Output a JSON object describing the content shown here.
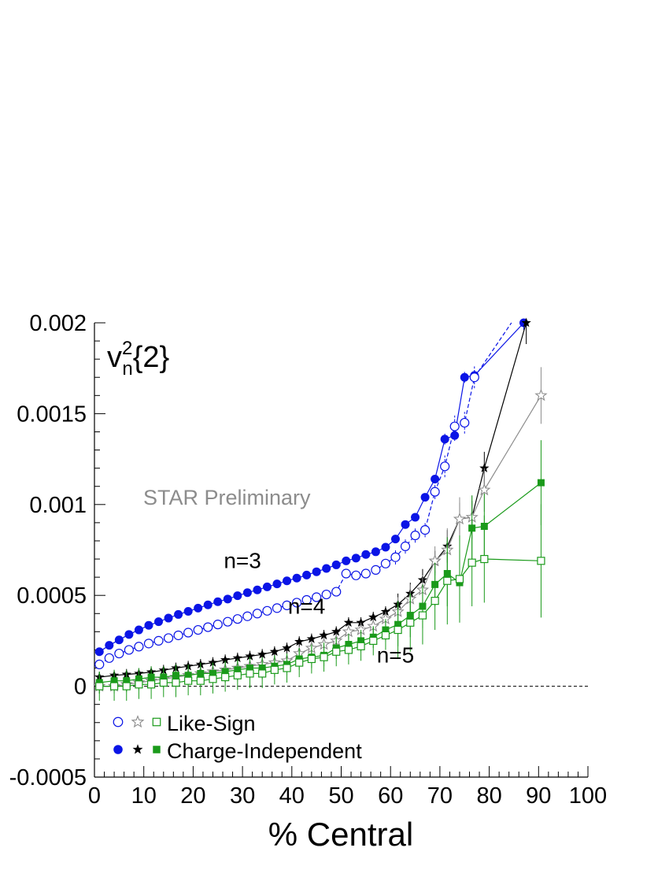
{
  "chart_data": {
    "type": "scatter",
    "title": "v_n^2{2}",
    "title_parts": {
      "base": "v",
      "sup": "2",
      "sub": "n",
      "rest": "{2}"
    },
    "annotation": "STAR Preliminary",
    "xlabel": "% Central",
    "ylabel": "",
    "xlim": [
      0,
      100
    ],
    "ylim": [
      -0.0005,
      0.002
    ],
    "x_ticks": [
      "0",
      "10",
      "20",
      "30",
      "40",
      "50",
      "60",
      "70",
      "80",
      "90",
      "100"
    ],
    "y_ticks": [
      "-0.0005",
      "0",
      "0.0005",
      "0.001",
      "0.0015",
      "0.002"
    ],
    "grid": false,
    "zero_line": "dashed",
    "colors": {
      "n3": "#0a14e6",
      "n4": "#000000",
      "n4_like": "#8c8c8c",
      "n5": "#1a9a1a"
    },
    "harmonic_labels": [
      {
        "text": "n=3",
        "x": 30,
        "y": 0.00065
      },
      {
        "text": "n=4",
        "x": 43,
        "y": 0.0004
      },
      {
        "text": "n=5",
        "x": 61,
        "y": 0.00013
      }
    ],
    "legend": {
      "placement": "bottom-left",
      "rows": [
        {
          "label": "Like-Sign",
          "markers": [
            "open-circle",
            "open-star",
            "open-square"
          ]
        },
        {
          "label": "Charge-Independent",
          "markers": [
            "filled-circle",
            "filled-star",
            "filled-square"
          ]
        }
      ]
    },
    "series": [
      {
        "harmonic": 3,
        "type": "charge-independent",
        "marker": "filled-circle",
        "color": "#0a14e6",
        "line": "solid",
        "err": 1e-05,
        "x": [
          1,
          3,
          5,
          7,
          9,
          11,
          13,
          15,
          17,
          19,
          21,
          23,
          25,
          27,
          29,
          31,
          33,
          35,
          37,
          39,
          41,
          43,
          45,
          47,
          49,
          51,
          53,
          55,
          57,
          59,
          61,
          63,
          65,
          67,
          69,
          71,
          73,
          75,
          77,
          87
        ],
        "y": [
          0.00019,
          0.000225,
          0.000255,
          0.000285,
          0.00031,
          0.000335,
          0.000355,
          0.000375,
          0.000395,
          0.000412,
          0.00043,
          0.000448,
          0.000465,
          0.00048,
          0.000498,
          0.000515,
          0.00053,
          0.000547,
          0.000563,
          0.00058,
          0.000595,
          0.000612,
          0.00063,
          0.000648,
          0.000668,
          0.00069,
          0.000705,
          0.000725,
          0.00074,
          0.000765,
          0.00081,
          0.00089,
          0.00093,
          0.00104,
          0.00114,
          0.00136,
          0.00138,
          0.0017,
          0.00171,
          0.002
        ]
      },
      {
        "harmonic": 3,
        "type": "like-sign",
        "marker": "open-circle",
        "color": "#0a14e6",
        "line": "dashed",
        "err": 2e-05,
        "x": [
          1,
          3,
          5,
          7,
          9,
          11,
          13,
          15,
          17,
          19,
          21,
          23,
          25,
          27,
          29,
          31,
          33,
          35,
          37,
          39,
          41,
          43,
          45,
          47,
          49,
          51,
          53,
          55,
          57,
          59,
          61,
          63,
          65,
          67,
          69,
          71,
          73,
          75,
          77,
          85
        ],
        "y": [
          0.00012,
          0.000155,
          0.00018,
          0.0002,
          0.000218,
          0.000235,
          0.00025,
          0.000265,
          0.00028,
          0.000295,
          0.00031,
          0.000325,
          0.00034,
          0.000355,
          0.00037,
          0.000385,
          0.0004,
          0.000415,
          0.00043,
          0.000445,
          0.00046,
          0.000475,
          0.00049,
          0.000505,
          0.00052,
          0.00062,
          0.00061,
          0.00062,
          0.00064,
          0.000675,
          0.00071,
          0.00077,
          0.00083,
          0.00086,
          0.00107,
          0.00121,
          0.00143,
          0.00145,
          0.0017,
          0.00202
        ]
      },
      {
        "harmonic": 4,
        "type": "charge-independent",
        "marker": "filled-star",
        "color": "#000000",
        "line": "solid",
        "err": 3e-05,
        "x": [
          1,
          4,
          6.5,
          9,
          11.5,
          14,
          16.5,
          19,
          21.5,
          24,
          26.5,
          29,
          31.5,
          34,
          36.5,
          39,
          41.5,
          44,
          46.5,
          49,
          51.5,
          54,
          56.5,
          59,
          61.5,
          64,
          66.5,
          69,
          71.5,
          74,
          76.5,
          79,
          87.5
        ],
        "y": [
          5e-05,
          6e-05,
          6.5e-05,
          7e-05,
          7.8e-05,
          8.8e-05,
          0.0001,
          0.00011,
          0.00012,
          0.00013,
          0.000145,
          0.000155,
          0.000165,
          0.000175,
          0.00019,
          0.00021,
          0.000245,
          0.00026,
          0.00028,
          0.0003,
          0.00035,
          0.00035,
          0.00038,
          0.00041,
          0.00045,
          0.00051,
          0.000585,
          0.000685,
          0.00077,
          0.00092,
          0.00093,
          0.0012,
          0.002
        ]
      },
      {
        "harmonic": 4,
        "type": "like-sign",
        "marker": "open-star",
        "color": "#8c8c8c",
        "line": "solid",
        "err": 4e-05,
        "x": [
          1,
          4,
          6.5,
          9,
          11.5,
          14,
          16.5,
          19,
          21.5,
          24,
          26.5,
          29,
          31.5,
          34,
          36.5,
          39,
          41.5,
          44,
          46.5,
          49,
          51.5,
          54,
          56.5,
          59,
          61.5,
          64,
          66.5,
          69,
          71.5,
          74,
          76.5,
          79,
          90.5
        ],
        "y": [
          0.0,
          0.0,
          1e-05,
          2e-05,
          3e-05,
          4e-05,
          5e-05,
          6e-05,
          7e-05,
          8e-05,
          9e-05,
          0.0001,
          0.00011,
          0.00012,
          0.00013,
          0.00014,
          0.00018,
          0.00021,
          0.00023,
          0.00025,
          0.0003,
          0.00031,
          0.00033,
          0.00037,
          0.00041,
          0.00048,
          0.00053,
          0.00069,
          0.00075,
          0.00092,
          0.00093,
          0.00108,
          0.0016
        ]
      },
      {
        "harmonic": 5,
        "type": "charge-independent",
        "marker": "filled-square",
        "color": "#1a9a1a",
        "line": "solid",
        "err": 6e-05,
        "x": [
          1,
          4,
          6.5,
          9,
          11.5,
          14,
          16.5,
          19,
          21.5,
          24,
          26.5,
          29,
          31.5,
          34,
          36.5,
          39,
          41.5,
          44,
          46.5,
          49,
          51.5,
          54,
          56.5,
          59,
          61.5,
          64,
          66.5,
          69,
          71.5,
          74,
          76.5,
          79,
          90.5
        ],
        "y": [
          2e-05,
          3e-05,
          3e-05,
          4e-05,
          5e-05,
          5e-05,
          6e-05,
          6e-05,
          7e-05,
          7e-05,
          8e-05,
          9e-05,
          0.0001,
          0.0001,
          0.00011,
          0.00012,
          0.00015,
          0.00016,
          0.00017,
          0.00021,
          0.00023,
          0.00025,
          0.00027,
          0.00031,
          0.00034,
          0.00039,
          0.00044,
          0.00056,
          0.00062,
          0.00057,
          0.00087,
          0.00088,
          0.00112
        ]
      },
      {
        "harmonic": 5,
        "type": "like-sign",
        "marker": "open-square",
        "color": "#1a9a1a",
        "line": "solid",
        "err": 8e-05,
        "x": [
          1,
          4,
          6.5,
          9,
          11.5,
          14,
          16.5,
          19,
          21.5,
          24,
          26.5,
          29,
          31.5,
          34,
          36.5,
          39,
          41.5,
          44,
          46.5,
          49,
          51.5,
          54,
          56.5,
          59,
          61.5,
          64,
          66.5,
          69,
          71.5,
          74,
          76.5,
          79,
          90.5
        ],
        "y": [
          0.0,
          0.0,
          0.0,
          1e-05,
          1e-05,
          2e-05,
          2e-05,
          3e-05,
          3e-05,
          4e-05,
          5e-05,
          6e-05,
          7e-05,
          7e-05,
          9e-05,
          0.0001,
          0.00013,
          0.00015,
          0.00016,
          0.00019,
          0.0002,
          0.00022,
          0.00025,
          0.00028,
          0.00031,
          0.00035,
          0.00039,
          0.00047,
          0.00058,
          0.00059,
          0.00068,
          0.0007,
          0.00069
        ]
      }
    ]
  }
}
